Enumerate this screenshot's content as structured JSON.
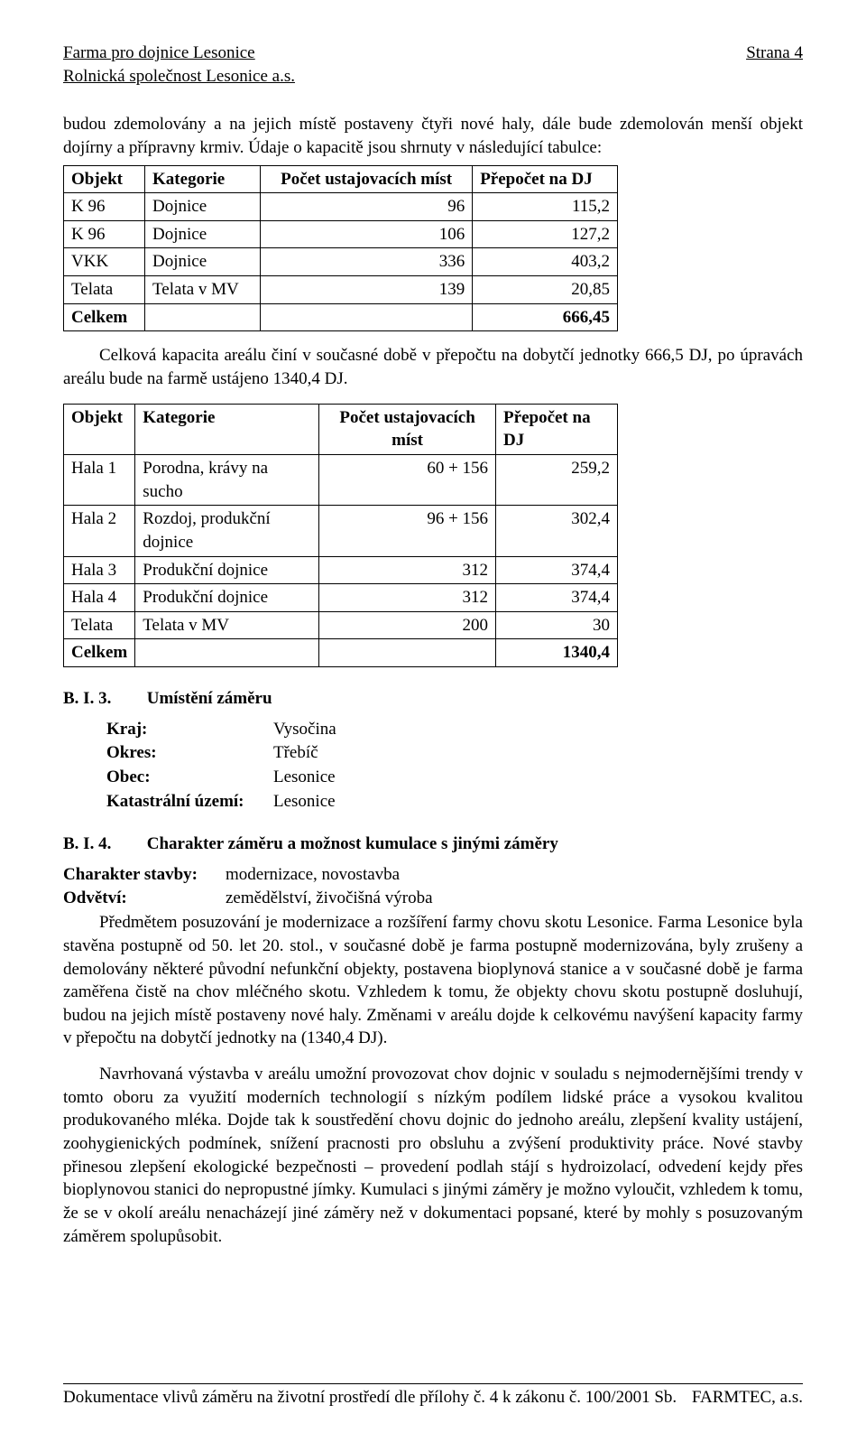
{
  "header": {
    "title_line1": "Farma pro dojnice Lesonice",
    "title_line2": "Rolnická společnost Lesonice a.s.",
    "page_label": "Strana 4"
  },
  "intro": {
    "p1": "budou zdemolovány a na jejich místě postaveny čtyři nové haly, dále bude zdemolován menší objekt dojírny a přípravny krmiv. Údaje o kapacitě jsou shrnuty v následující tabulce:"
  },
  "table1": {
    "columns": {
      "c1": "Objekt",
      "c2": "Kategorie",
      "c3": "Počet ustajovacích míst",
      "c4": "Přepočet na DJ"
    },
    "rows": [
      {
        "c1": "K 96",
        "c2": "Dojnice",
        "c3": "96",
        "c4": "115,2"
      },
      {
        "c1": "K 96",
        "c2": "Dojnice",
        "c3": "106",
        "c4": "127,2"
      },
      {
        "c1": "VKK",
        "c2": "Dojnice",
        "c3": "336",
        "c4": "403,2"
      },
      {
        "c1": "Telata",
        "c2": "Telata v MV",
        "c3": "139",
        "c4": "20,85"
      },
      {
        "c1": "Celkem",
        "c2": "",
        "c3": "",
        "c4": "666,45"
      }
    ]
  },
  "mid": {
    "p1": "Celková kapacita areálu činí v současné době v přepočtu na dobytčí jednotky 666,5 DJ, po úpravách areálu bude na farmě ustájeno 1340,4 DJ."
  },
  "table2": {
    "columns": {
      "c1": "Objekt",
      "c2": "Kategorie",
      "c3": "Počet ustajovacích míst",
      "c4": "Přepočet na DJ"
    },
    "rows": [
      {
        "c1": "Hala 1",
        "c2": "Porodna, krávy na sucho",
        "c3": "60 + 156",
        "c4": "259,2"
      },
      {
        "c1": "Hala 2",
        "c2": "Rozdoj, produkční dojnice",
        "c3": "96 + 156",
        "c4": "302,4"
      },
      {
        "c1": "Hala 3",
        "c2": "Produkční dojnice",
        "c3": "312",
        "c4": "374,4"
      },
      {
        "c1": "Hala 4",
        "c2": "Produkční dojnice",
        "c3": "312",
        "c4": "374,4"
      },
      {
        "c1": "Telata",
        "c2": "Telata v MV",
        "c3": "200",
        "c4": "30"
      },
      {
        "c1": "Celkem",
        "c2": "",
        "c3": "",
        "c4": "1340,4"
      }
    ]
  },
  "bi3": {
    "code": "B. I. 3.",
    "title": "Umístění záměru",
    "items": [
      {
        "label": "Kraj:",
        "value": "Vysočina"
      },
      {
        "label": "Okres:",
        "value": "Třebíč"
      },
      {
        "label": "Obec:",
        "value": "Lesonice"
      },
      {
        "label": "Katastrální území:",
        "value": "Lesonice"
      }
    ]
  },
  "bi4": {
    "code": "B. I. 4.",
    "title": "Charakter záměru a možnost kumulace s jinými záměry",
    "chars": [
      {
        "label": "Charakter stavby:",
        "value": "modernizace, novostavba"
      },
      {
        "label": "Odvětví:",
        "value": "zemědělství, živočišná výroba"
      }
    ],
    "p1": "Předmětem posuzování je modernizace a rozšíření farmy chovu skotu Lesonice. Farma Lesonice byla stavěna postupně od 50. let 20. stol., v současné době je farma postupně modernizována, byly zrušeny a demolovány některé původní nefunkční objekty, postavena bioplynová stanice a v současné době je farma zaměřena čistě na chov mléčného skotu. Vzhledem k tomu, že objekty chovu skotu postupně dosluhují, budou na jejich místě postaveny nové haly. Změnami v areálu dojde k celkovému navýšení kapacity farmy v přepočtu na dobytčí jednotky na (1340,4 DJ).",
    "p2": "Navrhovaná výstavba v areálu umožní provozovat chov dojnic v souladu s nejmodernějšími trendy v tomto oboru za využití moderních technologií s nízkým podílem lidské práce a vysokou kvalitou produkovaného mléka. Dojde tak k soustředění chovu dojnic do jednoho areálu, zlepšení kvality ustájení, zoohygienických podmínek, snížení pracnosti pro obsluhu a zvýšení produktivity práce. Nové stavby přinesou zlepšení ekologické bezpečnosti – provedení podlah stájí s hydroizolací, odvedení kejdy přes bioplynovou stanici do nepropustné jímky. Kumulaci s jinými záměry je možno vyloučit, vzhledem k tomu, že se v okolí areálu nenacházejí jiné záměry než v dokumentaci popsané, které by mohly s posuzovaným záměrem spolupůsobit."
  },
  "footer": {
    "left": "Dokumentace vlivů záměru na životní prostředí dle přílohy č. 4 k zákonu č. 100/2001 Sb.",
    "right": "FARMTEC, a.s."
  }
}
